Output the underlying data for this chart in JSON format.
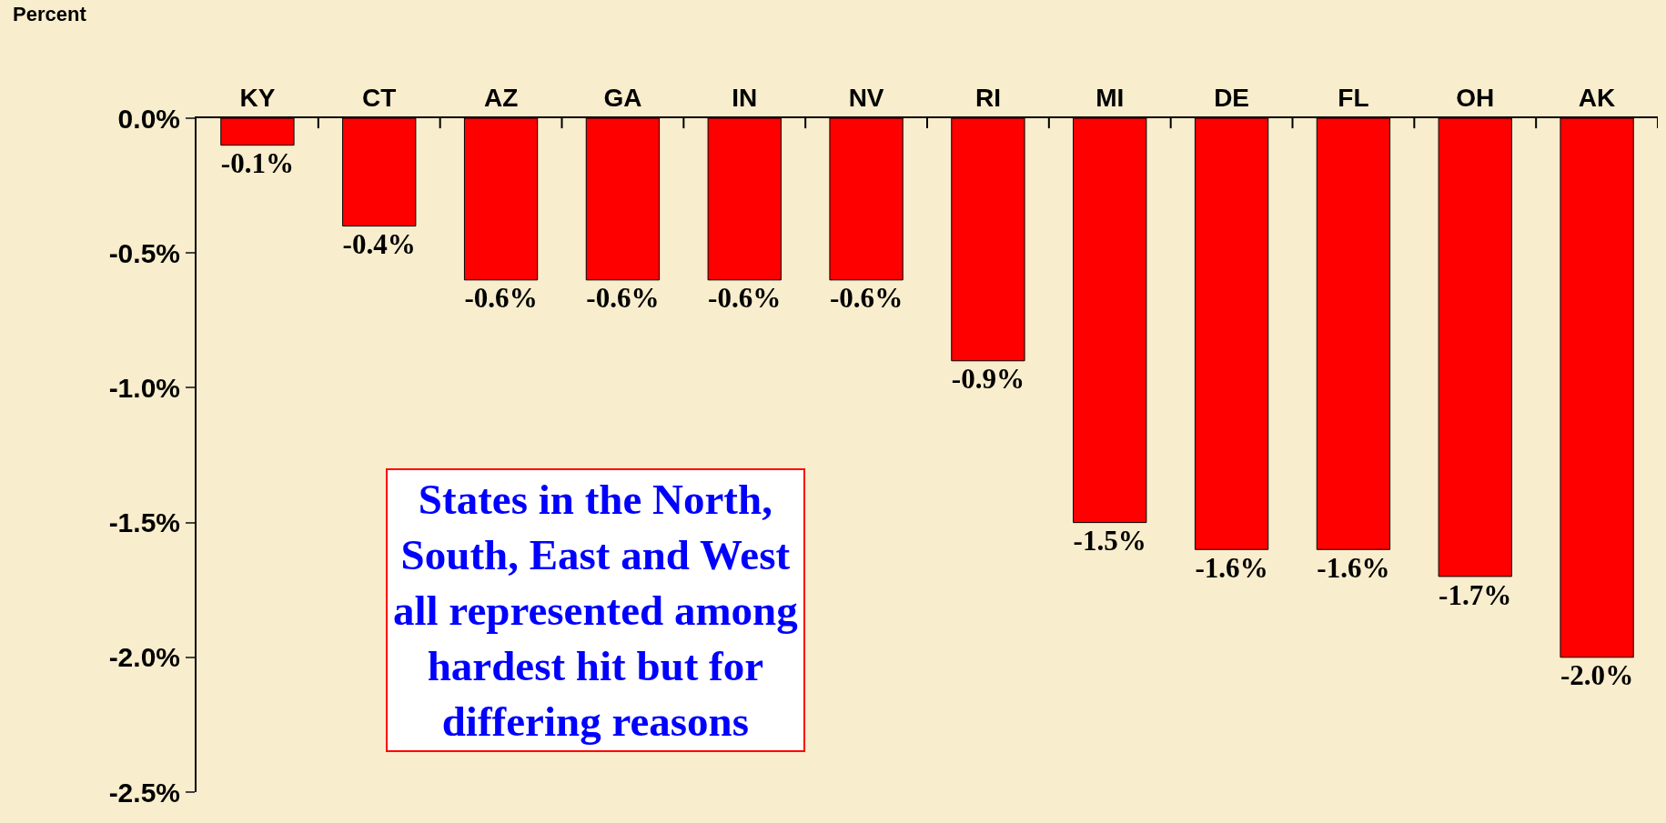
{
  "chart_data": {
    "type": "bar",
    "ylabel": "Percent",
    "categories": [
      "KY",
      "CT",
      "AZ",
      "GA",
      "IN",
      "NV",
      "RI",
      "MI",
      "DE",
      "FL",
      "OH",
      "AK"
    ],
    "values": [
      -0.1,
      -0.4,
      -0.6,
      -0.6,
      -0.6,
      -0.6,
      -0.9,
      -1.5,
      -1.6,
      -1.6,
      -1.7,
      -2.0
    ],
    "value_labels": [
      "-0.1%",
      "-0.4%",
      "-0.6%",
      "-0.6%",
      "-0.6%",
      "-0.6%",
      "-0.9%",
      "-1.5%",
      "-1.6%",
      "-1.6%",
      "-1.7%",
      "-2.0%"
    ],
    "color": "#ff0000",
    "ylim": [
      -2.5,
      0
    ],
    "yticks": [
      {
        "value": 0,
        "label": "0.0%"
      },
      {
        "value": -0.5,
        "label": "-0.5%"
      },
      {
        "value": -1,
        "label": "-1.0%"
      },
      {
        "value": -1.5,
        "label": "-1.5%"
      },
      {
        "value": -2,
        "label": "-2.0%"
      },
      {
        "value": -2.5,
        "label": "-2.5%"
      }
    ],
    "annotations": [
      "States in the North, South, East and West all represented among hardest hit but for differing reasons"
    ]
  }
}
